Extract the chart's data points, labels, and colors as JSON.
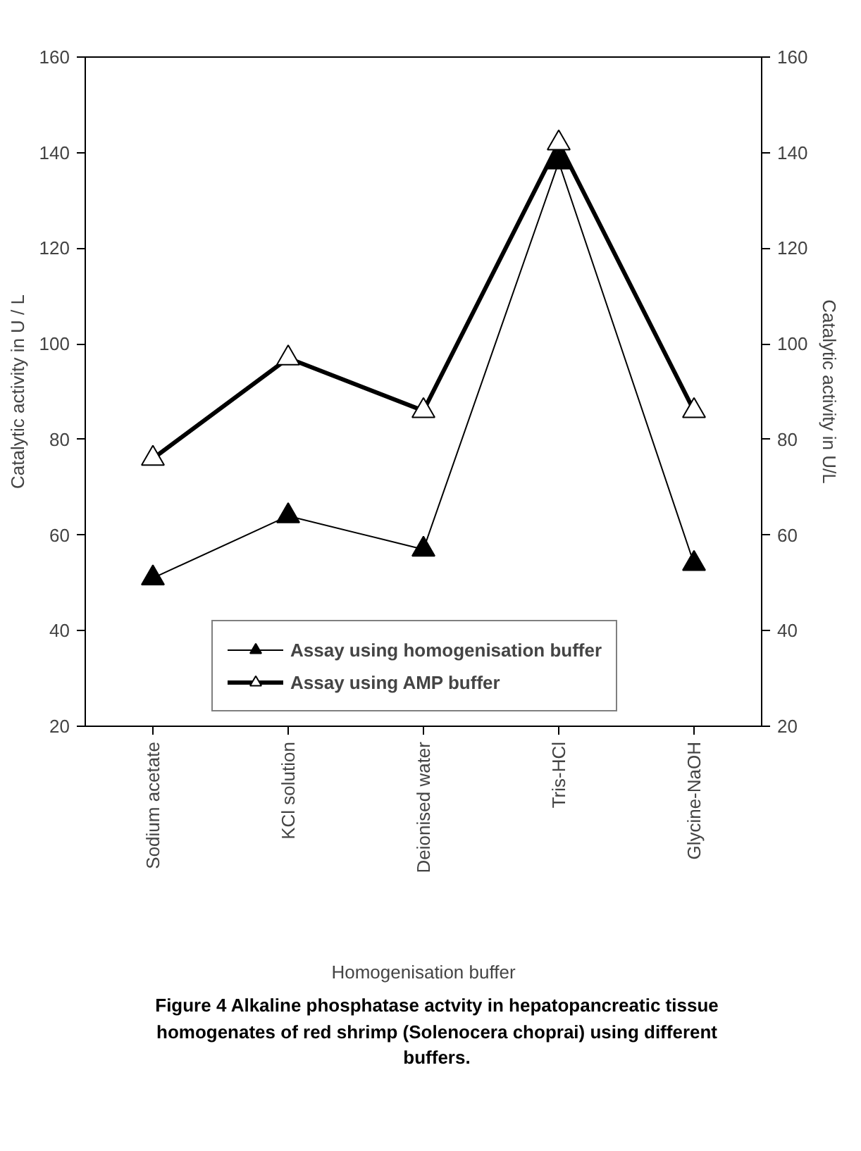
{
  "chart_data": {
    "type": "line",
    "categories": [
      "Sodium acetate",
      "KCl solution",
      "Deionised water",
      "Tris-HCl",
      "Glycine-NaOH"
    ],
    "series": [
      {
        "name": "Assay using homogenisation buffer",
        "color": "#000000",
        "values": [
          51,
          64,
          57,
          138,
          54
        ]
      },
      {
        "name": "Assay using AMP buffer",
        "color": "#000000",
        "values": [
          76,
          97,
          86,
          142,
          86
        ]
      }
    ],
    "xlabel": "Homogenisation buffer",
    "ylabel": "Catalytic activity in U / L",
    "y2label": "Catalytic activity in U/L",
    "ylim": [
      20,
      160
    ],
    "yticks": [
      20,
      40,
      60,
      80,
      100,
      120,
      140,
      160
    ],
    "y2lim": [
      20,
      160
    ],
    "y2ticks": [
      20,
      40,
      60,
      80,
      100,
      120,
      140,
      160
    ],
    "marker": "triangle",
    "grid": false,
    "legend": "bottom",
    "annotations": [
      "Figure 4  Alkaline phosphatase actvity in hepatopancreatic tissue homogenates of red shrimp (Solenocera choprai) using different buffers."
    ]
  }
}
